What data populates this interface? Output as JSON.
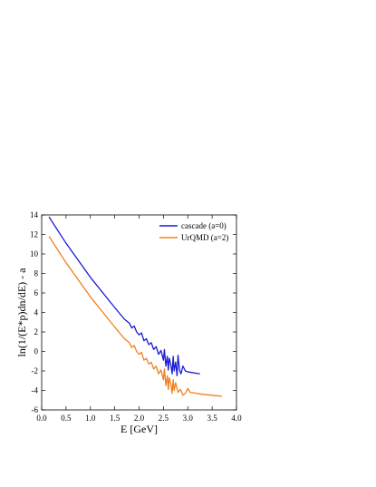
{
  "chart_data": {
    "type": "line",
    "xlabel": "E [GeV]",
    "ylabel": "ln(1/(E*p)dn/dE) - a",
    "xlim": [
      0.0,
      4.0
    ],
    "ylim": [
      -6,
      14
    ],
    "xticks": [
      "0.0",
      "0.5",
      "1.0",
      "1.5",
      "2.0",
      "2.5",
      "3.0",
      "3.5",
      "4.0"
    ],
    "yticks": [
      "-6",
      "-4",
      "-2",
      "0",
      "2",
      "4",
      "6",
      "8",
      "10",
      "12",
      "14"
    ],
    "legend_position": "top-right",
    "series": [
      {
        "name": "cascade (a=0)",
        "color": "#1a1ad6",
        "x": [
          0.15,
          0.5,
          1.0,
          1.5,
          1.7,
          1.8,
          1.85,
          1.9,
          1.95,
          2.0,
          2.05,
          2.1,
          2.15,
          2.2,
          2.25,
          2.3,
          2.35,
          2.4,
          2.45,
          2.5,
          2.52,
          2.55,
          2.58,
          2.6,
          2.62,
          2.65,
          2.68,
          2.7,
          2.72,
          2.75,
          2.78,
          2.8,
          2.83,
          2.86,
          2.9,
          2.95,
          3.0,
          3.25
        ],
        "y": [
          13.8,
          11.1,
          7.6,
          4.5,
          3.3,
          2.9,
          2.4,
          2.6,
          2.0,
          1.7,
          1.9,
          1.1,
          1.3,
          0.7,
          0.9,
          0.2,
          0.5,
          -0.3,
          0.1,
          -0.9,
          0.2,
          -1.5,
          -0.5,
          -1.9,
          -0.7,
          -1.3,
          -2.3,
          -0.5,
          -2.0,
          -1.1,
          -2.5,
          -0.4,
          -1.9,
          -2.3,
          -1.5,
          -2.0,
          -2.1,
          -2.3
        ]
      },
      {
        "name": "UrQMD (a=2)",
        "color": "#f08020",
        "x": [
          0.15,
          0.5,
          1.0,
          1.5,
          1.7,
          1.8,
          1.85,
          1.9,
          1.95,
          2.0,
          2.05,
          2.1,
          2.15,
          2.2,
          2.25,
          2.3,
          2.35,
          2.4,
          2.45,
          2.5,
          2.52,
          2.55,
          2.58,
          2.6,
          2.62,
          2.65,
          2.68,
          2.7,
          2.72,
          2.75,
          2.8,
          2.85,
          2.9,
          2.95,
          3.0,
          3.05,
          3.3,
          3.7
        ],
        "y": [
          11.8,
          9.1,
          5.6,
          2.5,
          1.3,
          0.9,
          0.4,
          0.6,
          0.0,
          -0.3,
          -0.1,
          -0.9,
          -0.7,
          -1.3,
          -1.1,
          -1.8,
          -1.5,
          -2.3,
          -1.9,
          -2.9,
          -1.8,
          -3.5,
          -2.5,
          -3.9,
          -2.7,
          -3.3,
          -4.3,
          -2.9,
          -4.0,
          -3.2,
          -4.2,
          -3.9,
          -4.5,
          -4.3,
          -3.8,
          -4.2,
          -4.4,
          -4.6
        ]
      }
    ]
  }
}
